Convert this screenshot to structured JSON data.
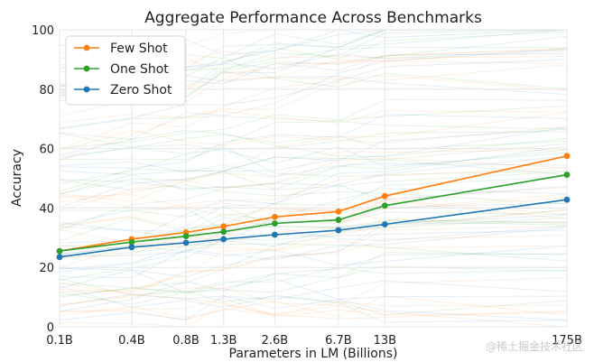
{
  "chart_data": {
    "type": "line",
    "title": "Aggregate Performance Across Benchmarks",
    "xlabel": "Parameters in LM (Billions)",
    "ylabel": "Accuracy",
    "x_tick_labels": [
      "0.1B",
      "0.4B",
      "0.8B",
      "1.3B",
      "2.6B",
      "6.7B",
      "13B",
      "175B"
    ],
    "x_log_values": [
      0.125,
      0.35,
      0.76,
      1.3,
      2.7,
      6.7,
      13,
      175
    ],
    "ylim": [
      0,
      100
    ],
    "y_ticks": [
      0,
      20,
      40,
      60,
      80,
      100
    ],
    "grid": true,
    "legend_position": "top-left",
    "series": [
      {
        "name": "Few Shot",
        "color": "#ff7f0e",
        "values": [
          25.5,
          29.5,
          31.8,
          33.8,
          37.0,
          38.8,
          44.0,
          57.5
        ]
      },
      {
        "name": "One Shot",
        "color": "#2ca02c",
        "values": [
          25.5,
          28.5,
          30.5,
          32.0,
          34.8,
          36.0,
          40.8,
          51.2
        ]
      },
      {
        "name": "Zero Shot",
        "color": "#1f77b4",
        "values": [
          23.5,
          26.8,
          28.3,
          29.5,
          31.0,
          32.5,
          34.5,
          42.8
        ]
      }
    ]
  },
  "watermark": "@稀土掘金技术社区"
}
